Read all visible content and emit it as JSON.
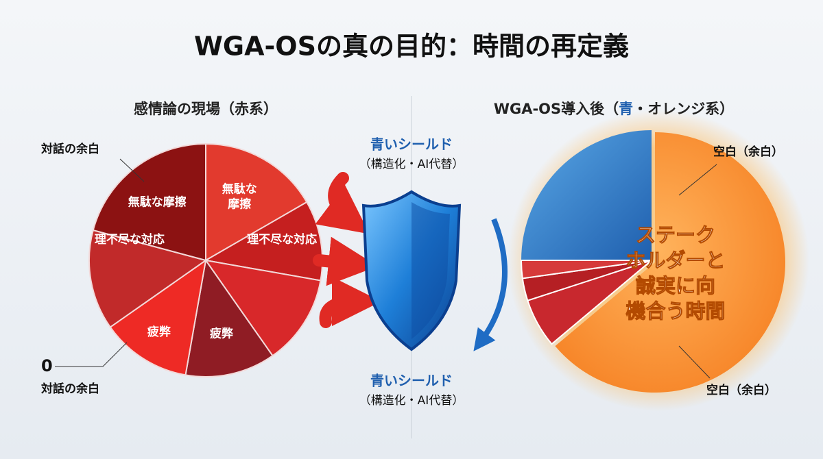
{
  "title": "WGA-OSの真の目的：時間の再定義",
  "left": {
    "heading": "感情論の現場（赤系）",
    "top_label": "対話の余白",
    "zero_label": "0",
    "bottom_label": "対話の余白",
    "slices": [
      {
        "lines": [
          "無駄な摩擦"
        ]
      },
      {
        "lines": [
          "無駄な",
          "摩擦"
        ]
      },
      {
        "lines": [
          "理不尽な対応"
        ]
      },
      {
        "lines": [
          "理不尽な対応"
        ]
      },
      {
        "lines": [
          "疲弊"
        ]
      },
      {
        "lines": [
          "疲弊"
        ]
      }
    ]
  },
  "center": {
    "top": {
      "title": "青いシールド",
      "subtitle": "（構造化・AI代替）"
    },
    "bottom": {
      "title": "青いシールド",
      "subtitle": "（構造化・AI代替）"
    }
  },
  "right": {
    "heading": {
      "before": "WGA-OS導入後（",
      "blue": "青",
      "after": "・オレンジ系）"
    },
    "top_label": "空白（余白）",
    "bottom_label": "空白（余白）",
    "focus_lines": [
      "ステーク",
      "ホルダーと",
      "誠実に向",
      "機合う時間"
    ]
  }
}
